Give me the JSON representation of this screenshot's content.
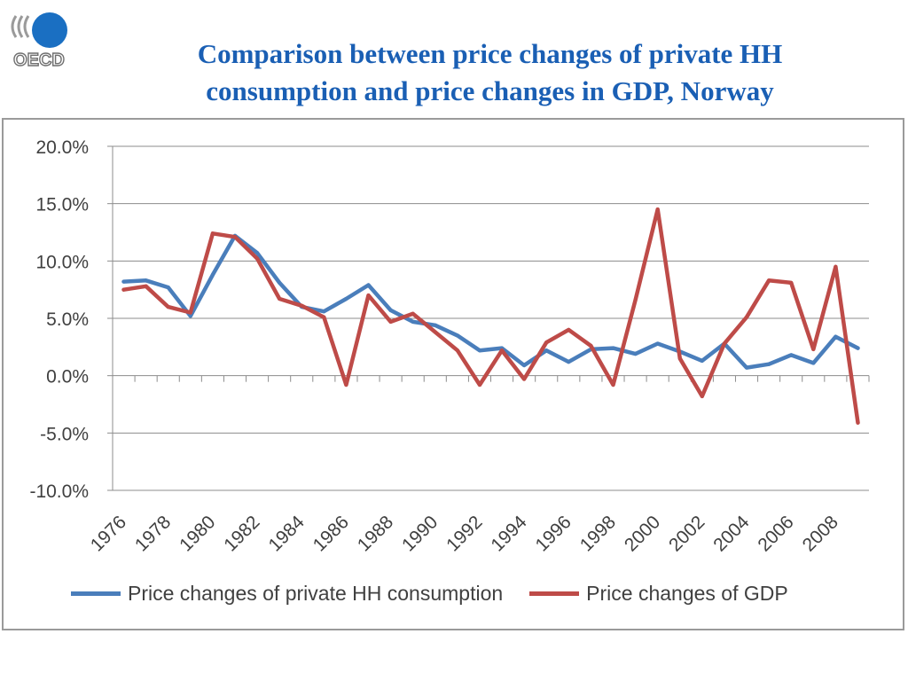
{
  "header": {
    "title_line1": "Comparison between price changes of private HH",
    "title_line2": "consumption and price changes in GDP, Norway",
    "logo_text": "OECD"
  },
  "colors": {
    "title": "#1a5fb4",
    "hh": "#4a7ebb",
    "gdp": "#be4b48",
    "grid": "#8c8c8c"
  },
  "chart_data": {
    "type": "line",
    "title": "",
    "xlabel": "",
    "ylabel": "",
    "ylim": [
      -10,
      20
    ],
    "yticks": [
      20,
      15,
      10,
      5,
      0,
      -5,
      -10
    ],
    "ytick_labels": [
      "20.0%",
      "15.0%",
      "10.0%",
      "5.0%",
      "0.0%",
      "-5.0%",
      "-10.0%"
    ],
    "grid": true,
    "legend_position": "bottom",
    "x": [
      1976,
      1977,
      1978,
      1979,
      1980,
      1981,
      1982,
      1983,
      1984,
      1985,
      1986,
      1987,
      1988,
      1989,
      1990,
      1991,
      1992,
      1993,
      1994,
      1995,
      1996,
      1997,
      1998,
      1999,
      2000,
      2001,
      2002,
      2003,
      2004,
      2005,
      2006,
      2007,
      2008,
      2009
    ],
    "xtick_labels": [
      "1976",
      "1978",
      "1980",
      "1982",
      "1984",
      "1986",
      "1988",
      "1990",
      "1992",
      "1994",
      "1996",
      "1998",
      "2000",
      "2002",
      "2004",
      "2006",
      "2008"
    ],
    "series": [
      {
        "name": "Price changes of private HH consumption",
        "color": "#4a7ebb",
        "values": [
          8.2,
          8.3,
          7.7,
          5.2,
          8.8,
          12.2,
          10.7,
          8.1,
          6.0,
          5.6,
          6.7,
          7.9,
          5.7,
          4.7,
          4.4,
          3.5,
          2.2,
          2.4,
          0.9,
          2.2,
          1.2,
          2.3,
          2.4,
          1.9,
          2.8,
          2.1,
          1.3,
          2.8,
          0.7,
          1.0,
          1.8,
          1.1,
          3.4,
          2.4
        ]
      },
      {
        "name": "Price changes of GDP",
        "color": "#be4b48",
        "values": [
          7.5,
          7.8,
          6.0,
          5.5,
          12.4,
          12.1,
          10.2,
          6.7,
          6.1,
          5.1,
          -0.8,
          7.0,
          4.7,
          5.4,
          3.8,
          2.2,
          -0.8,
          2.2,
          -0.3,
          2.9,
          4.0,
          2.6,
          -0.8,
          6.6,
          14.5,
          1.5,
          -1.8,
          2.8,
          5.1,
          8.3,
          8.1,
          2.3,
          9.5,
          -4.1
        ]
      }
    ]
  }
}
